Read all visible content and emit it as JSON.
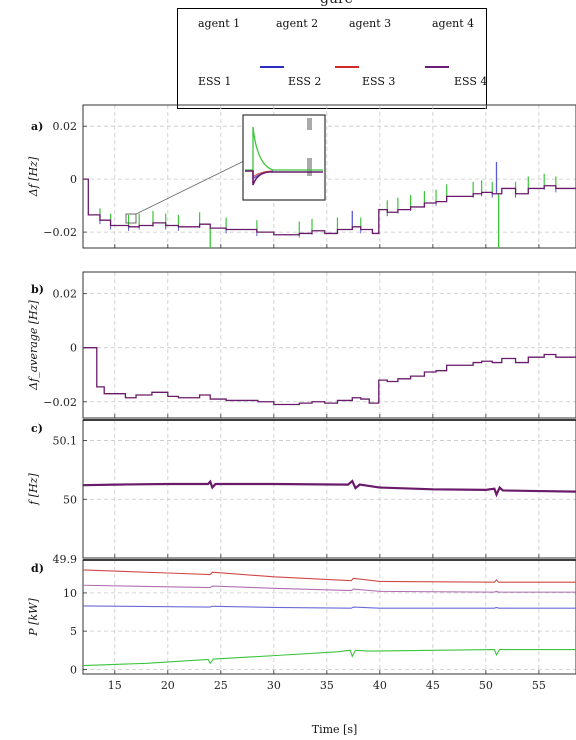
{
  "legend": {
    "entries": [
      {
        "label": "agent 1",
        "color": ""
      },
      {
        "label": "agent 2",
        "color": ""
      },
      {
        "label": "agent 3",
        "color": ""
      },
      {
        "label": "agent 4",
        "color": ""
      },
      {
        "label": "ESS 1",
        "color": ""
      },
      {
        "label": "ESS 2",
        "color": "#2c2cc8"
      },
      {
        "label": "ESS 3",
        "color": "#d02828"
      },
      {
        "label": "ESS 4",
        "color": "#6a1a7a"
      }
    ]
  },
  "colors": {
    "green": "#3cc43c",
    "blue": "#5a5ad6",
    "red": "#d04848",
    "purple": "#6a1a6a",
    "violet": "#b070b0"
  },
  "chart_data": [
    {
      "type": "line",
      "panel_label": "a)",
      "ylabel": "Δf [Hz]",
      "ylim": [
        -0.026,
        0.028
      ],
      "yticks": [
        0.02,
        0,
        -0.02
      ],
      "ytick_labels": [
        "0.02",
        "0",
        "−0.02"
      ],
      "xlim": [
        12,
        58.5
      ],
      "grid": true,
      "series": [
        {
          "color": "#6a1a6a",
          "x": [
            12.0,
            12.5,
            13.6,
            14.6,
            16.3,
            17.3,
            18.6,
            19.8,
            21.0,
            23.0,
            24.0,
            25.5,
            28.4,
            30.0,
            32.4,
            33.6,
            34.8,
            36.0,
            37.4,
            38.2,
            39.3,
            39.9,
            40.7,
            41.7,
            42.9,
            44.2,
            45.3,
            46.3,
            48.8,
            49.6,
            50.6,
            51.5,
            52.8,
            54.0,
            55.5,
            56.6,
            58.5
          ],
          "y": [
            0.0,
            -0.0135,
            -0.0155,
            -0.0175,
            -0.018,
            -0.0175,
            -0.0165,
            -0.0175,
            -0.018,
            -0.017,
            -0.0185,
            -0.019,
            -0.02,
            -0.021,
            -0.0205,
            -0.0195,
            -0.0205,
            -0.019,
            -0.018,
            -0.019,
            -0.0205,
            -0.0115,
            -0.0125,
            -0.0115,
            -0.0105,
            -0.009,
            -0.0085,
            -0.0065,
            -0.0055,
            -0.005,
            -0.0055,
            -0.0035,
            -0.0055,
            -0.0035,
            -0.0025,
            -0.0035,
            -0.003
          ]
        }
      ],
      "spikes_x": [
        13.6,
        14.6,
        16.3,
        17.3,
        18.6,
        19.8,
        21.0,
        23.0,
        25.5,
        28.4,
        32.4,
        33.6,
        36.0,
        38.2,
        40.7,
        41.7,
        42.9,
        44.2,
        45.3,
        46.3,
        48.8,
        49.6,
        50.6,
        52.8,
        54.0,
        55.5,
        56.6
      ],
      "events": [
        {
          "x": 24.0,
          "color": "#3cc43c",
          "dy": -0.016
        },
        {
          "x": 37.4,
          "color": "#5a5ad6",
          "dy": 0.006
        },
        {
          "x": 51.0,
          "color": "#5a5ad6",
          "dy": 0.012
        },
        {
          "x": 51.2,
          "color": "#3cc43c",
          "dy": -0.021
        }
      ]
    },
    {
      "type": "line",
      "panel_label": "b)",
      "ylabel": "Δf_average [Hz]",
      "ylim": [
        -0.026,
        0.028
      ],
      "yticks": [
        0.02,
        0,
        -0.02
      ],
      "ytick_labels": [
        "0.02",
        "0",
        "−0.02"
      ],
      "xlim": [
        12,
        58.5
      ],
      "grid": true,
      "series": [
        {
          "color": "#6a1a6a",
          "x": [
            12.0,
            13.3,
            14.0,
            16.0,
            17.0,
            18.5,
            20.0,
            21.0,
            23.0,
            24.0,
            25.5,
            28.5,
            30.0,
            32.4,
            33.6,
            34.8,
            36.0,
            37.4,
            38.2,
            39.0,
            39.9,
            40.7,
            41.7,
            42.9,
            44.2,
            45.3,
            46.3,
            48.8,
            49.6,
            50.6,
            51.5,
            52.8,
            54.0,
            55.5,
            56.6,
            58.5
          ],
          "y": [
            0.0,
            -0.0145,
            -0.017,
            -0.0185,
            -0.0175,
            -0.0165,
            -0.018,
            -0.0185,
            -0.0175,
            -0.019,
            -0.0195,
            -0.02,
            -0.021,
            -0.0205,
            -0.02,
            -0.0205,
            -0.0195,
            -0.0185,
            -0.019,
            -0.0205,
            -0.012,
            -0.0125,
            -0.0115,
            -0.0105,
            -0.009,
            -0.0085,
            -0.0065,
            -0.0055,
            -0.005,
            -0.0055,
            -0.004,
            -0.0055,
            -0.0035,
            -0.0025,
            -0.0035,
            -0.003
          ]
        }
      ]
    },
    {
      "type": "line",
      "panel_label": "c)",
      "ylabel": "f [Hz]",
      "ylim": [
        49.9,
        50.135
      ],
      "yticks": [
        50.1,
        50
      ],
      "ytick_labels": [
        "50.1",
        "50"
      ],
      "xlim": [
        12,
        58.5
      ],
      "grid": true,
      "series": [
        {
          "color": "#6a1a6a",
          "x": [
            12.0,
            15.0,
            20.0,
            23.8,
            24.0,
            24.2,
            24.5,
            30.0,
            37.0,
            37.4,
            37.7,
            38.1,
            40.0,
            45.0,
            50.0,
            50.8,
            51.0,
            51.3,
            51.6,
            55.0,
            58.5
          ],
          "y": [
            50.024,
            50.025,
            50.026,
            50.026,
            50.03,
            50.02,
            50.026,
            50.026,
            50.025,
            50.031,
            50.019,
            50.025,
            50.02,
            50.017,
            50.016,
            50.018,
            50.008,
            50.02,
            50.015,
            50.014,
            50.013
          ]
        }
      ]
    },
    {
      "type": "line",
      "panel_label": "d)",
      "ylabel": "P [kW]",
      "xlabel": "Time [s]",
      "ylim": [
        -0.6,
        14.3
      ],
      "yticks": [
        10,
        5,
        0
      ],
      "ytick_labels": [
        "10",
        "5",
        "0"
      ],
      "extra_tick_label": "49.9",
      "xlim": [
        12,
        58.5
      ],
      "xticks": [
        15,
        20,
        25,
        30,
        35,
        40,
        45,
        50,
        55
      ],
      "grid": true,
      "series": [
        {
          "color": "#d04848",
          "x": [
            12,
            20,
            24,
            24.2,
            30,
            37.3,
            37.5,
            40,
            50.8,
            51.0,
            51.2,
            58.5
          ],
          "y": [
            13.0,
            12.6,
            12.4,
            12.7,
            12.1,
            11.6,
            11.9,
            11.5,
            11.4,
            11.7,
            11.4,
            11.4
          ]
        },
        {
          "color": "#b070b0",
          "x": [
            12,
            20,
            24,
            24.2,
            30,
            37.3,
            37.5,
            40,
            50.8,
            51.0,
            51.2,
            58.5
          ],
          "y": [
            11.0,
            10.8,
            10.7,
            10.9,
            10.6,
            10.3,
            10.5,
            10.2,
            10.1,
            10.2,
            10.1,
            10.1
          ]
        },
        {
          "color": "#6a6ad6",
          "x": [
            12,
            20,
            24,
            24.2,
            30,
            37.3,
            37.5,
            40,
            50.8,
            51.0,
            51.2,
            58.5
          ],
          "y": [
            8.3,
            8.2,
            8.15,
            8.25,
            8.1,
            8.0,
            8.15,
            8.0,
            8.0,
            8.1,
            8.0,
            8.0
          ]
        },
        {
          "color": "#3cc43c",
          "x": [
            12,
            18,
            23.8,
            24.0,
            24.3,
            30,
            36.0,
            37.2,
            37.4,
            37.7,
            39.0,
            45.0,
            50.8,
            51.0,
            51.3,
            55.0,
            58.5
          ],
          "y": [
            0.5,
            0.8,
            1.3,
            0.8,
            1.35,
            1.8,
            2.3,
            2.5,
            1.7,
            2.5,
            2.4,
            2.5,
            2.6,
            1.9,
            2.6,
            2.6,
            2.6
          ]
        }
      ]
    }
  ],
  "top_fragment": "gure"
}
